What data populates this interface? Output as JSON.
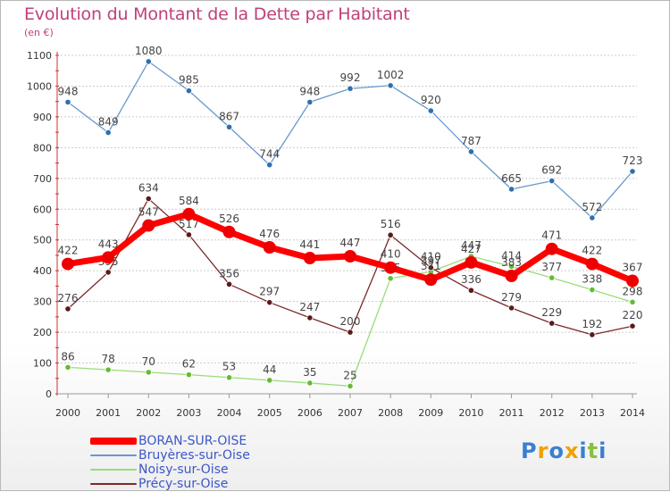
{
  "chart_data": {
    "type": "line",
    "title": "Evolution du Montant de la Dette par Habitant",
    "unit_label": "(en €)",
    "x": [
      "2000",
      "2001",
      "2002",
      "2003",
      "2004",
      "2005",
      "2006",
      "2007",
      "2008",
      "2009",
      "2010",
      "2011",
      "2012",
      "2013",
      "2014"
    ],
    "ylim": [
      0,
      1100
    ],
    "yticks": [
      0,
      100,
      200,
      300,
      400,
      500,
      600,
      700,
      800,
      900,
      1000,
      1100
    ],
    "grid": "horizontal dashed",
    "legend_position": "bottom-left",
    "series": [
      {
        "name": "Bruyères-sur-Oise",
        "color": "#6699cc",
        "marker": "#2e6fae",
        "values": [
          948,
          849,
          1080,
          985,
          867,
          744,
          948,
          992,
          1002,
          920,
          787,
          665,
          692,
          572,
          723
        ]
      },
      {
        "name": "Noisy-sur-Oise",
        "color": "#99dd77",
        "marker": "#66bb33",
        "values": [
          86,
          78,
          70,
          62,
          53,
          44,
          35,
          25,
          375,
          397,
          447,
          414,
          377,
          338,
          298
        ]
      },
      {
        "name": "Précy-sur-Oise",
        "color": "#7a2a2a",
        "marker": "#5a1a1a",
        "values": [
          276,
          395,
          634,
          517,
          356,
          297,
          247,
          200,
          516,
          410,
          336,
          279,
          229,
          192,
          220
        ]
      },
      {
        "name": "BORAN-SUR-OISE",
        "color": "#ff0000",
        "marker": "#ee0000",
        "values": [
          422,
          443,
          547,
          584,
          526,
          476,
          441,
          447,
          410,
          371,
          427,
          383,
          471,
          422,
          367
        ]
      }
    ]
  },
  "labels": {
    "Bruyères-sur-Oise": [
      "948",
      "849",
      "1080",
      "985",
      "867",
      "744",
      "948",
      "992",
      "1002",
      "920",
      "787",
      "665",
      "692",
      "572",
      "723"
    ],
    "Noisy-sur-Oise": [
      "86",
      "78",
      "70",
      "62",
      "53",
      "44",
      "35",
      "25",
      "375",
      "397",
      "447",
      "414",
      "377",
      "338",
      "298"
    ],
    "Précy-sur-Oise": [
      "276",
      "395",
      "634",
      "517",
      "356",
      "297",
      "247",
      "200",
      "516",
      "410",
      "336",
      "279",
      "229",
      "192",
      "220"
    ],
    "BORAN-SUR-OISE": [
      "422",
      "443",
      "547",
      "584",
      "526",
      "476",
      "441",
      "447",
      "410",
      "371",
      "427",
      "383",
      "471",
      "422",
      "367"
    ]
  },
  "legend": [
    {
      "label": "BORAN-SUR-OISE",
      "color": "#ff0000"
    },
    {
      "label": "Bruyères-sur-Oise",
      "color": "#6699cc"
    },
    {
      "label": "Noisy-sur-Oise",
      "color": "#99dd77"
    },
    {
      "label": "Précy-sur-Oise",
      "color": "#7a2a2a"
    }
  ],
  "logo": {
    "text": "Proxiti",
    "letters": [
      {
        "ch": "P",
        "color": "#3a7fd0"
      },
      {
        "ch": "r",
        "color": "#f0a000"
      },
      {
        "ch": "o",
        "color": "#3a7fd0"
      },
      {
        "ch": "x",
        "color": "#f0a000"
      },
      {
        "ch": "i",
        "color": "#3a7fd0"
      },
      {
        "ch": "t",
        "color": "#88c040"
      },
      {
        "ch": "i",
        "color": "#3a7fd0"
      }
    ]
  }
}
